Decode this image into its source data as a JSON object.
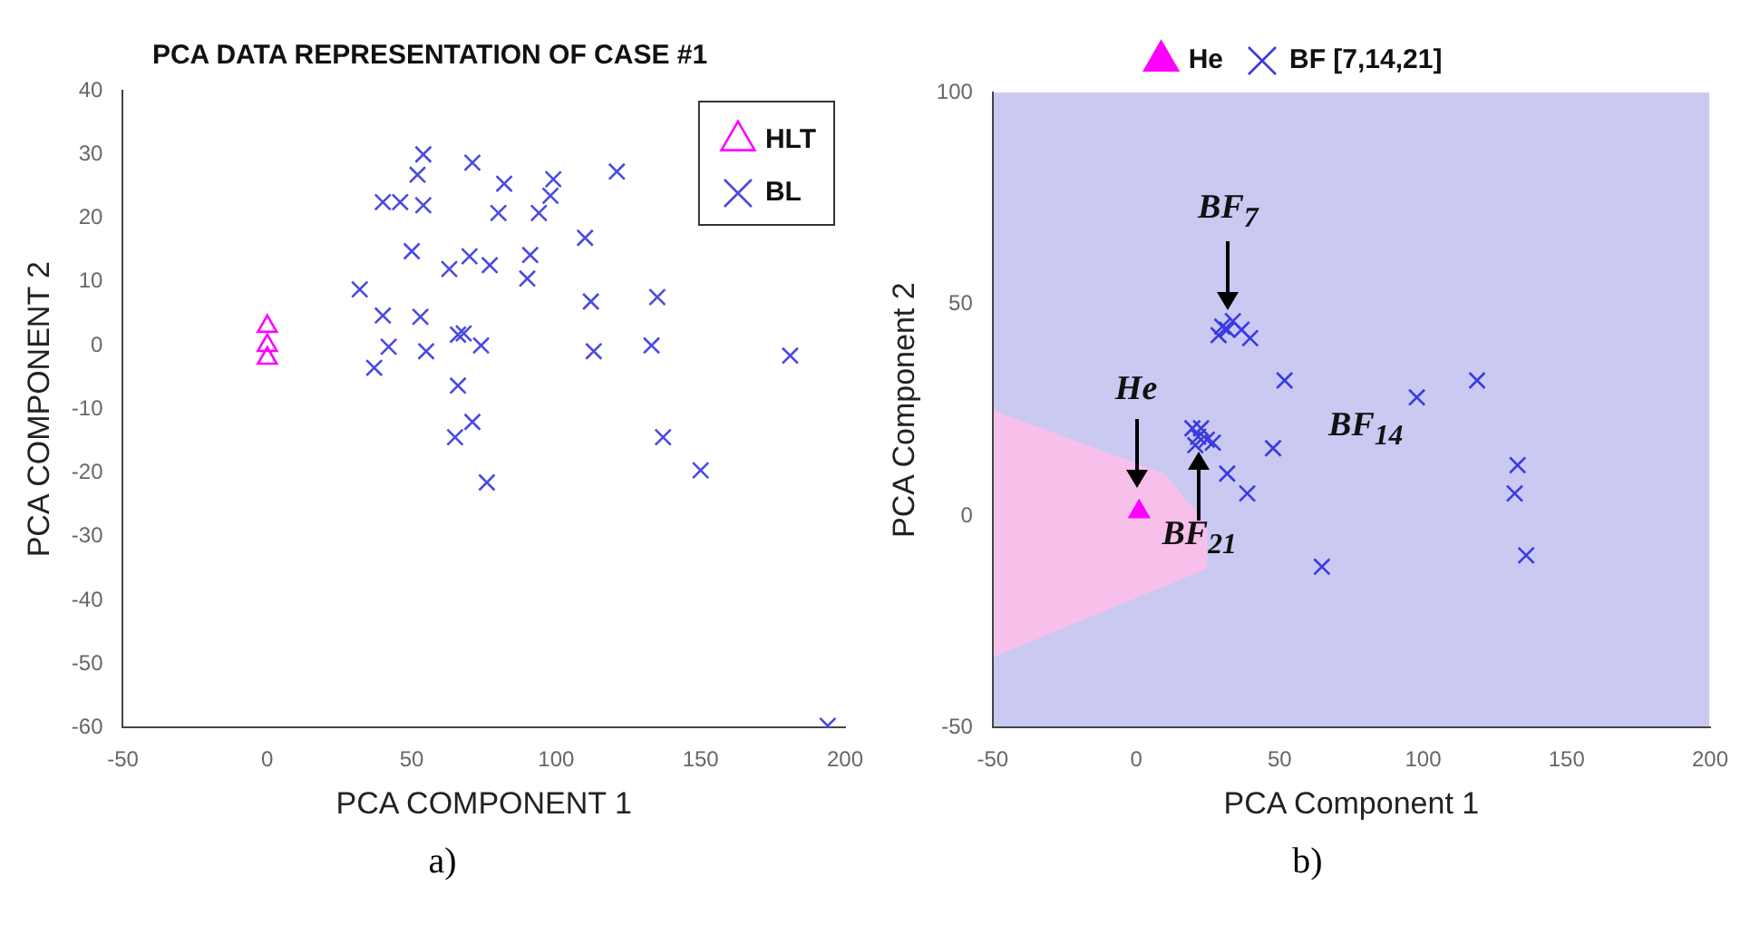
{
  "chart_data": [
    {
      "type": "scatter",
      "title": "PCA DATA REPRESENTATION OF CASE #1",
      "xlabel": "PCA COMPONENT 1",
      "ylabel": "PCA COMPONENT 2",
      "xlim": [
        -50,
        200
      ],
      "xticks": [
        -50,
        0,
        50,
        100,
        150,
        200
      ],
      "ylim": [
        -60,
        40
      ],
      "yticks": [
        -60,
        -50,
        -40,
        -30,
        -20,
        -10,
        0,
        10,
        20,
        30,
        40
      ],
      "legend": "top right",
      "series": [
        {
          "name": "HLT",
          "color": "#ff00ff",
          "marker": "triangle",
          "x": [
            0,
            0,
            0
          ],
          "values": [
            3,
            0,
            -2
          ]
        },
        {
          "name": "BL",
          "color": "#4a4ae0",
          "marker": "cross",
          "x": [
            32,
            40,
            37,
            42,
            40,
            46,
            50,
            52,
            54,
            54,
            53,
            55,
            63,
            70,
            66,
            68,
            66,
            65,
            71,
            71,
            74,
            77,
            76,
            80,
            82,
            91,
            90,
            94,
            98,
            99,
            110,
            112,
            113,
            121,
            133,
            135,
            137,
            150,
            181,
            194
          ],
          "values": [
            8.8,
            4.7,
            -3.5,
            -0.2,
            22.5,
            22.5,
            14.8,
            26.8,
            30,
            22,
            4.5,
            -0.9,
            12,
            14,
            1.7,
            1.9,
            -6.3,
            -14.4,
            -12,
            28.7,
            0,
            12.6,
            -21.5,
            20.8,
            25.4,
            14.2,
            10.5,
            20.8,
            23.5,
            26.1,
            16.9,
            6.9,
            -0.9,
            27.3,
            0,
            7.6,
            -14.4,
            -19.6,
            -1.6,
            -59.7
          ]
        }
      ],
      "annotations": [
        "a)"
      ]
    },
    {
      "type": "scatter",
      "xlabel": "PCA Component 1",
      "ylabel": "PCA Component 2",
      "xlim": [
        -50,
        200
      ],
      "xticks": [
        -50,
        0,
        50,
        100,
        150,
        200
      ],
      "ylim": [
        -50,
        100
      ],
      "yticks": [
        -50,
        0,
        50,
        100
      ],
      "legend": "top",
      "series": [
        {
          "name": "He",
          "color": "#ff00ff",
          "marker": "triangle",
          "x": [
            1
          ],
          "values": [
            1
          ]
        },
        {
          "name": "BF [7,14,21]",
          "color": "#3a3ae0",
          "marker": "cross",
          "x": [
            31.7,
            30,
            36.7,
            39.7,
            33.7,
            28.7,
            21.6,
            19.6,
            24.6,
            26.7,
            22.6,
            20.6,
            51.7,
            47.7,
            31.7,
            38.7,
            97.8,
            118.8,
            132.9,
            131.9,
            135.9,
            64.7
          ],
          "values": [
            44,
            44.7,
            44,
            42,
            46,
            42.7,
            18.7,
            20.7,
            18,
            17.3,
            20.7,
            16.7,
            32,
            16,
            10,
            5.3,
            28,
            32,
            12,
            5.3,
            -9.3,
            -12
          ]
        }
      ],
      "annotations": [
        {
          "text": "BF$_{7}$",
          "x": 32,
          "y": 45
        },
        {
          "text": "He",
          "x": 0,
          "y": 3
        },
        {
          "text": "BF$_{21}$",
          "x": 22,
          "y": 17
        },
        "BF$_{14}$",
        "b)"
      ]
    }
  ]
}
